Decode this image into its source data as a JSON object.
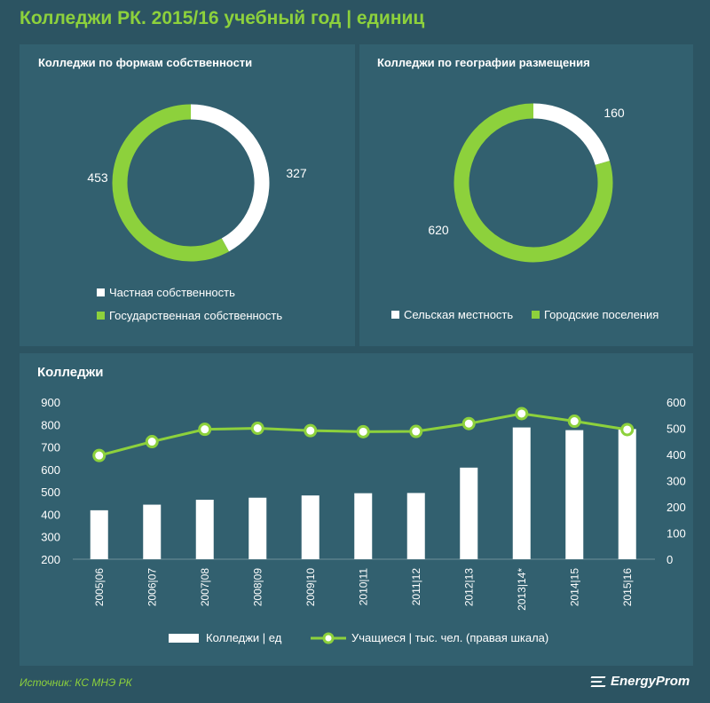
{
  "page": {
    "title": "Колледжи РК. 2015/16 учебный год | единиц",
    "source": "Источник: КС МНЭ РК",
    "brand": "EnergyProm"
  },
  "colors": {
    "background": "#2c5462",
    "panel": "#32606f",
    "green": "#8dd13c",
    "white": "#ffffff"
  },
  "chart_data": [
    {
      "type": "pie",
      "title": "Колледжи по формам собственности",
      "slices": [
        {
          "label": "Частная собственность",
          "value": 327,
          "value_label": "327",
          "color": "#ffffff"
        },
        {
          "label": "Государственная собственность",
          "value": 453,
          "value_label": "453",
          "color": "#8dd13c"
        }
      ]
    },
    {
      "type": "pie",
      "title": "Колледжи по географии размещения",
      "slices": [
        {
          "label": "Сельская местность",
          "value": 160,
          "value_label": "160",
          "color": "#ffffff"
        },
        {
          "label": "Городские поселения",
          "value": 620,
          "value_label": "620",
          "color": "#8dd13c"
        }
      ]
    },
    {
      "type": "bar",
      "title": "Колледжи",
      "categories": [
        "2005|06",
        "2006|07",
        "2007|08",
        "2008|09",
        "2009|10",
        "2010|11",
        "2011|12",
        "2012|13",
        "2013|14*",
        "2014|15",
        "2015|16"
      ],
      "series": [
        {
          "name": "Колледжи | ед",
          "axis": "left",
          "type": "bar",
          "color": "#ffffff",
          "values": [
            418,
            443,
            465,
            474,
            484,
            494,
            495,
            608,
            787,
            775,
            780
          ]
        },
        {
          "name": "Учащиеся | тыс. чел. (правая шкала)",
          "axis": "right",
          "type": "line",
          "color": "#8dd13c",
          "values": [
            396,
            449,
            496,
            500,
            491,
            487,
            488,
            518,
            556,
            527,
            495
          ]
        }
      ],
      "y_left": {
        "min": 200,
        "max": 900,
        "ticks": [
          "200",
          "300",
          "400",
          "500",
          "600",
          "700",
          "800",
          "900"
        ]
      },
      "y_right": {
        "min": 0,
        "max": 600,
        "ticks": [
          "0",
          "100",
          "200",
          "300",
          "400",
          "500",
          "600"
        ]
      },
      "grid": false
    }
  ]
}
